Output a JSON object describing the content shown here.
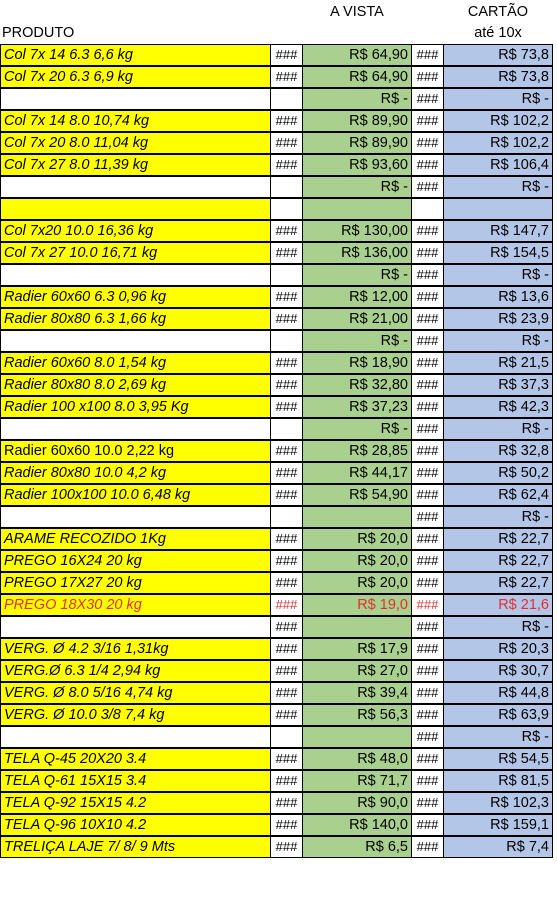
{
  "header": {
    "produto": "PRODUTO",
    "a_vista": "A VISTA",
    "cartao_line1": "CARTÃO",
    "cartao_line2": "até 10x"
  },
  "colors": {
    "product_fill": "#ffff00",
    "vista_fill": "#a9d08e",
    "cartao_fill": "#b4c6e7",
    "highlight_text": "#e03030"
  },
  "rows": [
    {
      "product": "Col 7x 14 6.3  6,6 kg",
      "h1": "###",
      "vista": "R$ 64,90",
      "h2": "###",
      "cartao": "R$ 73,8",
      "fill": "yellow",
      "italic": true
    },
    {
      "product": "Col 7x 20 6.3 6,9 kg",
      "h1": "###",
      "vista": "R$ 64,90",
      "h2": "###",
      "cartao": "R$ 73,8",
      "fill": "yellow",
      "italic": true
    },
    {
      "product": "",
      "h1": "",
      "vista": "R$ -",
      "h2": "###",
      "cartao": "R$ -",
      "fill": "white",
      "italic": true
    },
    {
      "product": "Col 7x 14 8.0  10,74 kg",
      "h1": "###",
      "vista": "R$ 89,90",
      "h2": "###",
      "cartao": "R$ 102,2",
      "fill": "yellow",
      "italic": true
    },
    {
      "product": "Col 7x 20 8.0  11,04 kg",
      "h1": "###",
      "vista": "R$ 89,90",
      "h2": "###",
      "cartao": "R$ 102,2",
      "fill": "yellow",
      "italic": true
    },
    {
      "product": "Col 7x 27 8.0  11,39 kg",
      "h1": "###",
      "vista": "R$ 93,60",
      "h2": "###",
      "cartao": "R$ 106,4",
      "fill": "yellow",
      "italic": true
    },
    {
      "product": "",
      "h1": "",
      "vista": "R$ -",
      "h2": "###",
      "cartao": "R$ -",
      "fill": "white",
      "italic": true
    },
    {
      "product": "",
      "h1": "",
      "vista": "",
      "h2": "",
      "cartao": "",
      "fill": "yellow",
      "italic": true
    },
    {
      "product": "Col 7x20 10.0  16,36 kg",
      "h1": "###",
      "vista": "R$ 130,00",
      "h2": "###",
      "cartao": "R$ 147,7",
      "fill": "yellow",
      "italic": true
    },
    {
      "product": "Col 7x 27 10.0  16,71 kg",
      "h1": "###",
      "vista": "R$ 136,00",
      "h2": "###",
      "cartao": "R$ 154,5",
      "fill": "yellow",
      "italic": true
    },
    {
      "product": "",
      "h1": "",
      "vista": "R$ -",
      "h2": "###",
      "cartao": "R$ -",
      "fill": "white",
      "italic": true
    },
    {
      "product": "Radier 60x60 6.3 0,96 kg",
      "h1": "###",
      "vista": "R$ 12,00",
      "h2": "###",
      "cartao": "R$ 13,6",
      "fill": "yellow",
      "italic": true
    },
    {
      "product": "Radier 80x80 6.3  1,66 kg",
      "h1": "###",
      "vista": "R$ 21,00",
      "h2": "###",
      "cartao": "R$ 23,9",
      "fill": "yellow",
      "italic": true
    },
    {
      "product": "",
      "h1": "",
      "vista": "R$ -",
      "h2": "###",
      "cartao": "R$ -",
      "fill": "white",
      "italic": true
    },
    {
      "product": "Radier 60x60 8.0  1,54 kg",
      "h1": "###",
      "vista": "R$ 18,90",
      "h2": "###",
      "cartao": "R$ 21,5",
      "fill": "yellow",
      "italic": true
    },
    {
      "product": "Radier 80x80 8.0  2,69 kg",
      "h1": "###",
      "vista": "R$ 32,80",
      "h2": "###",
      "cartao": "R$ 37,3",
      "fill": "yellow",
      "italic": true
    },
    {
      "product": "Radier 100 x100 8.0 3,95 Kg",
      "h1": "###",
      "vista": "R$ 37,23",
      "h2": "###",
      "cartao": "R$ 42,3",
      "fill": "yellow",
      "italic": true
    },
    {
      "product": "",
      "h1": "",
      "vista": "R$ -",
      "h2": "###",
      "cartao": "R$ -",
      "fill": "white",
      "italic": true
    },
    {
      "product": "Radier 60x60 10.0 2,22 kg",
      "h1": "###",
      "vista": "R$ 28,85",
      "h2": "###",
      "cartao": "R$ 32,8",
      "fill": "yellow",
      "italic": false
    },
    {
      "product": "Radier 80x80 10.0  4,2 kg",
      "h1": "###",
      "vista": "R$ 44,17",
      "h2": "###",
      "cartao": "R$ 50,2",
      "fill": "yellow",
      "italic": true
    },
    {
      "product": "Radier 100x100 10.0  6,48 kg",
      "h1": "###",
      "vista": "R$ 54,90",
      "h2": "###",
      "cartao": "R$ 62,4",
      "fill": "yellow",
      "italic": true
    },
    {
      "product": "",
      "h1": "",
      "vista": "",
      "h2": "###",
      "cartao": "R$ -",
      "fill": "white",
      "italic": true
    },
    {
      "product": "ARAME RECOZIDO 1Kg",
      "h1": "###",
      "vista": "R$ 20,0",
      "h2": "###",
      "cartao": "R$ 22,7",
      "fill": "yellow",
      "italic": true
    },
    {
      "product": "PREGO 16X24 20 kg",
      "h1": "###",
      "vista": "R$ 20,0",
      "h2": "###",
      "cartao": "R$ 22,7",
      "fill": "yellow",
      "italic": true
    },
    {
      "product": "PREGO 17X27  20 kg",
      "h1": "###",
      "vista": "R$ 20,0",
      "h2": "###",
      "cartao": "R$ 22,7",
      "fill": "yellow",
      "italic": true
    },
    {
      "product": "PREGO 18X30  20 kg",
      "h1": "###",
      "vista": "R$ 19,0",
      "h2": "###",
      "cartao": "R$ 21,6",
      "fill": "yellow",
      "italic": true,
      "red": true
    },
    {
      "product": "",
      "h1": "###",
      "vista": "",
      "h2": "###",
      "cartao": "R$ -",
      "fill": "white",
      "italic": true
    },
    {
      "product": "VERG. Ø  4.2 3/16 1,31kg",
      "h1": "###",
      "vista": "R$ 17,9",
      "h2": "###",
      "cartao": "R$ 20,3",
      "fill": "yellow",
      "italic": true
    },
    {
      "product": "VERG.Ø  6.3 1/4 2,94 kg",
      "h1": "###",
      "vista": "R$ 27,0",
      "h2": "###",
      "cartao": "R$ 30,7",
      "fill": "yellow",
      "italic": true
    },
    {
      "product": "VERG. Ø 8.0 5/16  4,74 kg",
      "h1": "###",
      "vista": "R$ 39,4",
      "h2": "###",
      "cartao": "R$ 44,8",
      "fill": "yellow",
      "italic": true
    },
    {
      "product": "VERG. Ø  10.0 3/8 7,4 kg",
      "h1": "###",
      "vista": "R$ 56,3",
      "h2": "###",
      "cartao": "R$ 63,9",
      "fill": "yellow",
      "italic": true
    },
    {
      "product": "",
      "h1": "",
      "vista": "",
      "h2": "###",
      "cartao": "R$ -",
      "fill": "white",
      "italic": true
    },
    {
      "product": "TELA Q-45 20X20 3.4",
      "h1": "###",
      "vista": "R$ 48,0",
      "h2": "###",
      "cartao": "R$ 54,5",
      "fill": "yellow",
      "italic": true
    },
    {
      "product": "TELA Q-61 15X15 3.4",
      "h1": "###",
      "vista": "R$ 71,7",
      "h2": "###",
      "cartao": "R$ 81,5",
      "fill": "yellow",
      "italic": true
    },
    {
      "product": "TELA Q-92 15X15 4.2",
      "h1": "###",
      "vista": "R$ 90,0",
      "h2": "###",
      "cartao": "R$ 102,3",
      "fill": "yellow",
      "italic": true
    },
    {
      "product": "TELA Q-96 10X10 4.2",
      "h1": "###",
      "vista": "R$ 140,0",
      "h2": "###",
      "cartao": "R$ 159,1",
      "fill": "yellow",
      "italic": true
    },
    {
      "product": "TRELIÇA LAJE 7/ 8/ 9 Mts",
      "h1": "###",
      "vista": "R$ 6,5",
      "h2": "###",
      "cartao": "R$ 7,4",
      "fill": "yellow",
      "italic": true
    }
  ]
}
